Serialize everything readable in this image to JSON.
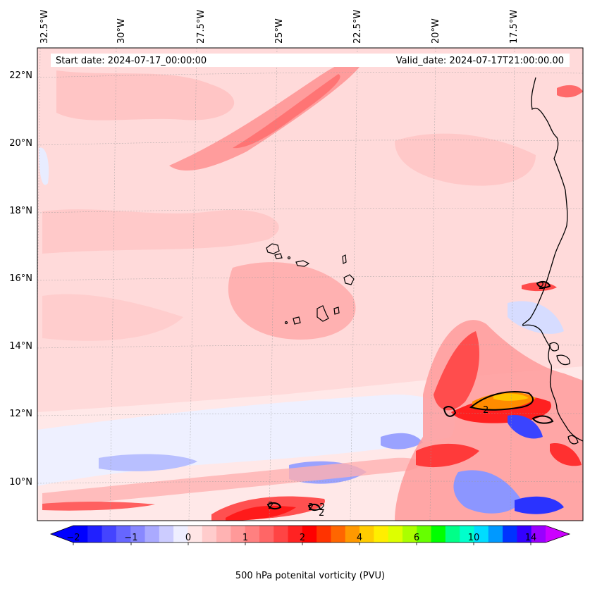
{
  "header": {
    "start_date": "Start date: 2024-07-17_00:00:00",
    "valid_date": "Valid_date: 2024-07-17T21:00:00.00"
  },
  "map": {
    "lon_labels": [
      "32.5°W",
      "30°W",
      "27.5°W",
      "25°W",
      "22.5°W",
      "20°W",
      "17.5°W"
    ],
    "lat_labels": [
      "22°N",
      "20°N",
      "18°N",
      "16°N",
      "14°N",
      "12°N",
      "10°N"
    ],
    "contour_labels": [
      "2",
      "2",
      "2",
      "2",
      "2",
      "2"
    ]
  },
  "colorbar": {
    "title": "500 hPa potenital vorticity (PVU)",
    "tick_labels": [
      "−2",
      "−1",
      "0",
      "1",
      "2",
      "4",
      "6",
      "10",
      "14"
    ],
    "colors": [
      "#0000ff",
      "#2020ff",
      "#4444ff",
      "#6666ff",
      "#8888ff",
      "#aaaaff",
      "#ccccff",
      "#eeeeff",
      "#ffe6e6",
      "#ffcccc",
      "#ffb3b3",
      "#ff9999",
      "#ff8080",
      "#ff6666",
      "#ff4444",
      "#ff2222",
      "#ff0000",
      "#ff3300",
      "#ff6600",
      "#ff9900",
      "#ffcc00",
      "#ffee00",
      "#ddff00",
      "#aaff00",
      "#66ff00",
      "#00ff00",
      "#00ff88",
      "#00ffcc",
      "#00ddff",
      "#0099ff",
      "#0033ff",
      "#3300ff",
      "#9900ff"
    ],
    "under_color": "#0000ff",
    "over_color": "#cc00ff"
  }
}
